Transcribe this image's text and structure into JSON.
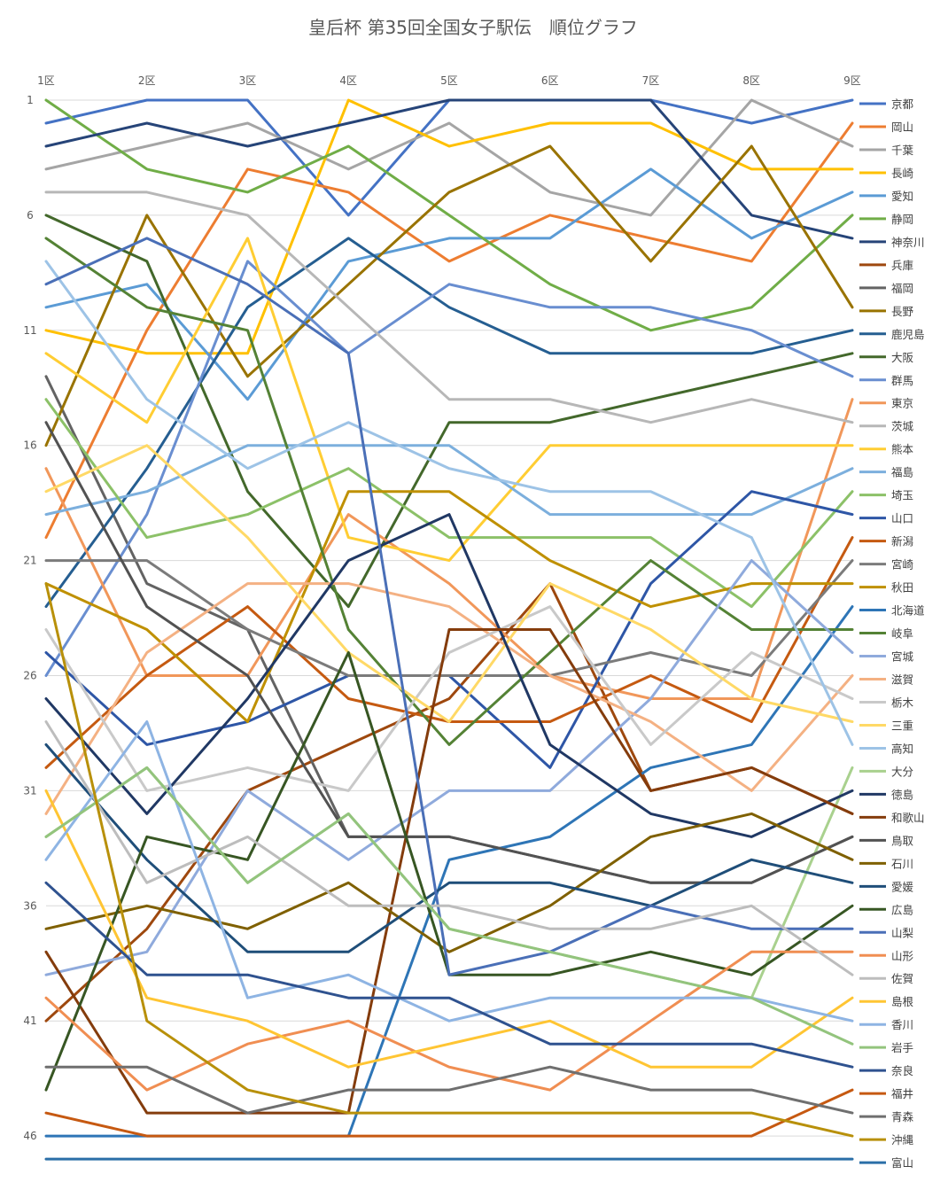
{
  "chart_data": {
    "type": "line",
    "title": "皇后杯 第35回全国女子駅伝　順位グラフ",
    "categories": [
      "1区",
      "2区",
      "3区",
      "4区",
      "5区",
      "6区",
      "7区",
      "8区",
      "9区"
    ],
    "y_ticks": [
      "1",
      "6",
      "11",
      "16",
      "21",
      "26",
      "31",
      "36",
      "41",
      "46"
    ],
    "ylim": [
      1,
      47
    ],
    "y_reversed": true,
    "grid": true,
    "legend_position": "right",
    "series": [
      {
        "name": "京都",
        "color": "#4472C4",
        "values": [
          2,
          1,
          1,
          6,
          1,
          1,
          1,
          2,
          1
        ]
      },
      {
        "name": "岡山",
        "color": "#ED7D31",
        "values": [
          20,
          11,
          4,
          5,
          8,
          6,
          7,
          8,
          2
        ]
      },
      {
        "name": "千葉",
        "color": "#A5A5A5",
        "values": [
          4,
          3,
          2,
          4,
          2,
          5,
          6,
          1,
          3
        ]
      },
      {
        "name": "長崎",
        "color": "#FFC000",
        "values": [
          11,
          12,
          12,
          1,
          3,
          2,
          2,
          4,
          4
        ]
      },
      {
        "name": "愛知",
        "color": "#5B9BD5",
        "values": [
          10,
          9,
          14,
          8,
          7,
          7,
          4,
          7,
          5
        ]
      },
      {
        "name": "静岡",
        "color": "#70AD47",
        "values": [
          1,
          4,
          5,
          3,
          6,
          9,
          11,
          10,
          6
        ]
      },
      {
        "name": "神奈川",
        "color": "#264478",
        "values": [
          3,
          2,
          3,
          2,
          1,
          1,
          1,
          6,
          7
        ]
      },
      {
        "name": "兵庫",
        "color": "#9E480E",
        "values": [
          41,
          37,
          31,
          29,
          27,
          22,
          31,
          30,
          32
        ]
      },
      {
        "name": "福岡",
        "color": "#636363",
        "values": [
          13,
          22,
          24,
          33,
          33,
          34,
          35,
          35,
          33
        ]
      },
      {
        "name": "長野",
        "color": "#997300",
        "values": [
          16,
          6,
          13,
          9,
          5,
          3,
          8,
          3,
          10
        ]
      },
      {
        "name": "鹿児島",
        "color": "#255E91",
        "values": [
          23,
          17,
          10,
          7,
          10,
          12,
          12,
          12,
          11
        ]
      },
      {
        "name": "大阪",
        "color": "#43682B",
        "values": [
          6,
          8,
          18,
          23,
          15,
          15,
          14,
          13,
          12
        ]
      },
      {
        "name": "群馬",
        "color": "#698ED0",
        "values": [
          26,
          19,
          8,
          12,
          9,
          10,
          10,
          11,
          13
        ]
      },
      {
        "name": "東京",
        "color": "#F1975A",
        "values": [
          17,
          26,
          26,
          19,
          22,
          26,
          27,
          27,
          14
        ]
      },
      {
        "name": "茨城",
        "color": "#B7B7B7",
        "values": [
          5,
          5,
          6,
          10,
          14,
          14,
          15,
          14,
          15
        ]
      },
      {
        "name": "熊本",
        "color": "#FFCD33",
        "values": [
          12,
          15,
          7,
          20,
          21,
          16,
          16,
          16,
          16
        ]
      },
      {
        "name": "福島",
        "color": "#7CAFDD",
        "values": [
          19,
          18,
          16,
          16,
          16,
          19,
          19,
          19,
          17
        ]
      },
      {
        "name": "埼玉",
        "color": "#8CC168",
        "values": [
          14,
          20,
          19,
          17,
          20,
          20,
          20,
          23,
          18
        ]
      },
      {
        "name": "山口",
        "color": "#2E56A6",
        "values": [
          25,
          29,
          28,
          26,
          26,
          30,
          22,
          18,
          19
        ]
      },
      {
        "name": "新潟",
        "color": "#C55A11",
        "values": [
          30,
          26,
          23,
          27,
          28,
          28,
          26,
          28,
          20
        ]
      },
      {
        "name": "宮崎",
        "color": "#7B7B7B",
        "values": [
          21,
          21,
          24,
          26,
          26,
          26,
          25,
          26,
          21
        ]
      },
      {
        "name": "秋田",
        "color": "#BF9000",
        "values": [
          22,
          24,
          28,
          18,
          18,
          21,
          23,
          22,
          22
        ]
      },
      {
        "name": "北海道",
        "color": "#2E75B6",
        "values": [
          46,
          46,
          46,
          46,
          34,
          33,
          30,
          29,
          23
        ]
      },
      {
        "name": "岐阜",
        "color": "#548235",
        "values": [
          7,
          10,
          11,
          24,
          29,
          25,
          21,
          24,
          24
        ]
      },
      {
        "name": "宮城",
        "color": "#8FAADC",
        "values": [
          39,
          38,
          31,
          34,
          31,
          31,
          27,
          21,
          25
        ]
      },
      {
        "name": "滋賀",
        "color": "#F4B183",
        "values": [
          32,
          25,
          22,
          22,
          23,
          26,
          28,
          31,
          26
        ]
      },
      {
        "name": "栃木",
        "color": "#C9C9C9",
        "values": [
          24,
          31,
          30,
          31,
          25,
          23,
          29,
          25,
          27
        ]
      },
      {
        "name": "三重",
        "color": "#FFD966",
        "values": [
          18,
          16,
          20,
          25,
          28,
          22,
          24,
          27,
          28
        ]
      },
      {
        "name": "高知",
        "color": "#9DC3E6",
        "values": [
          8,
          14,
          17,
          15,
          17,
          18,
          18,
          20,
          29
        ]
      },
      {
        "name": "大分",
        "color": "#A9D18E",
        "values": [
          33,
          30,
          35,
          32,
          37,
          38,
          39,
          40,
          30
        ]
      },
      {
        "name": "徳島",
        "color": "#203864",
        "values": [
          27,
          32,
          27,
          21,
          19,
          29,
          32,
          33,
          31
        ]
      },
      {
        "name": "和歌山",
        "color": "#843C0C",
        "values": [
          38,
          45,
          45,
          45,
          24,
          24,
          31,
          30,
          32
        ]
      },
      {
        "name": "鳥取",
        "color": "#525252",
        "values": [
          15,
          23,
          26,
          33,
          33,
          34,
          35,
          35,
          33
        ]
      },
      {
        "name": "石川",
        "color": "#7F6000",
        "values": [
          37,
          36,
          37,
          35,
          38,
          36,
          33,
          32,
          34
        ]
      },
      {
        "name": "愛媛",
        "color": "#1F4E79",
        "values": [
          29,
          34,
          38,
          38,
          35,
          35,
          36,
          34,
          35
        ]
      },
      {
        "name": "広島",
        "color": "#375623",
        "values": [
          44,
          33,
          34,
          25,
          39,
          39,
          38,
          39,
          36
        ]
      },
      {
        "name": "山梨",
        "color": "#4A6FB7",
        "values": [
          9,
          7,
          9,
          12,
          39,
          38,
          36,
          37,
          37
        ]
      },
      {
        "name": "山形",
        "color": "#F08E52",
        "values": [
          40,
          44,
          42,
          41,
          43,
          44,
          41,
          38,
          38
        ]
      },
      {
        "name": "佐賀",
        "color": "#BDBDBD",
        "values": [
          28,
          35,
          33,
          36,
          36,
          37,
          37,
          36,
          39
        ]
      },
      {
        "name": "島根",
        "color": "#FFC533",
        "values": [
          31,
          40,
          41,
          43,
          42,
          41,
          43,
          43,
          40
        ]
      },
      {
        "name": "香川",
        "color": "#8EB4E3",
        "values": [
          34,
          28,
          40,
          39,
          41,
          40,
          40,
          40,
          41
        ]
      },
      {
        "name": "岩手",
        "color": "#93C47D",
        "values": [
          33,
          30,
          35,
          32,
          37,
          38,
          39,
          40,
          42
        ]
      },
      {
        "name": "奈良",
        "color": "#2F528F",
        "values": [
          35,
          39,
          39,
          40,
          40,
          42,
          42,
          42,
          43
        ]
      },
      {
        "name": "福井",
        "color": "#C65911",
        "values": [
          45,
          46,
          46,
          46,
          46,
          46,
          46,
          46,
          44
        ]
      },
      {
        "name": "青森",
        "color": "#6F6F6F",
        "values": [
          43,
          43,
          45,
          44,
          44,
          43,
          44,
          44,
          45
        ]
      },
      {
        "name": "沖縄",
        "color": "#B8900A",
        "values": [
          22,
          41,
          44,
          45,
          45,
          45,
          45,
          45,
          46
        ]
      },
      {
        "name": "富山",
        "color": "#2B6FA8",
        "values": [
          47,
          47,
          47,
          47,
          47,
          47,
          47,
          47,
          47
        ]
      }
    ]
  }
}
